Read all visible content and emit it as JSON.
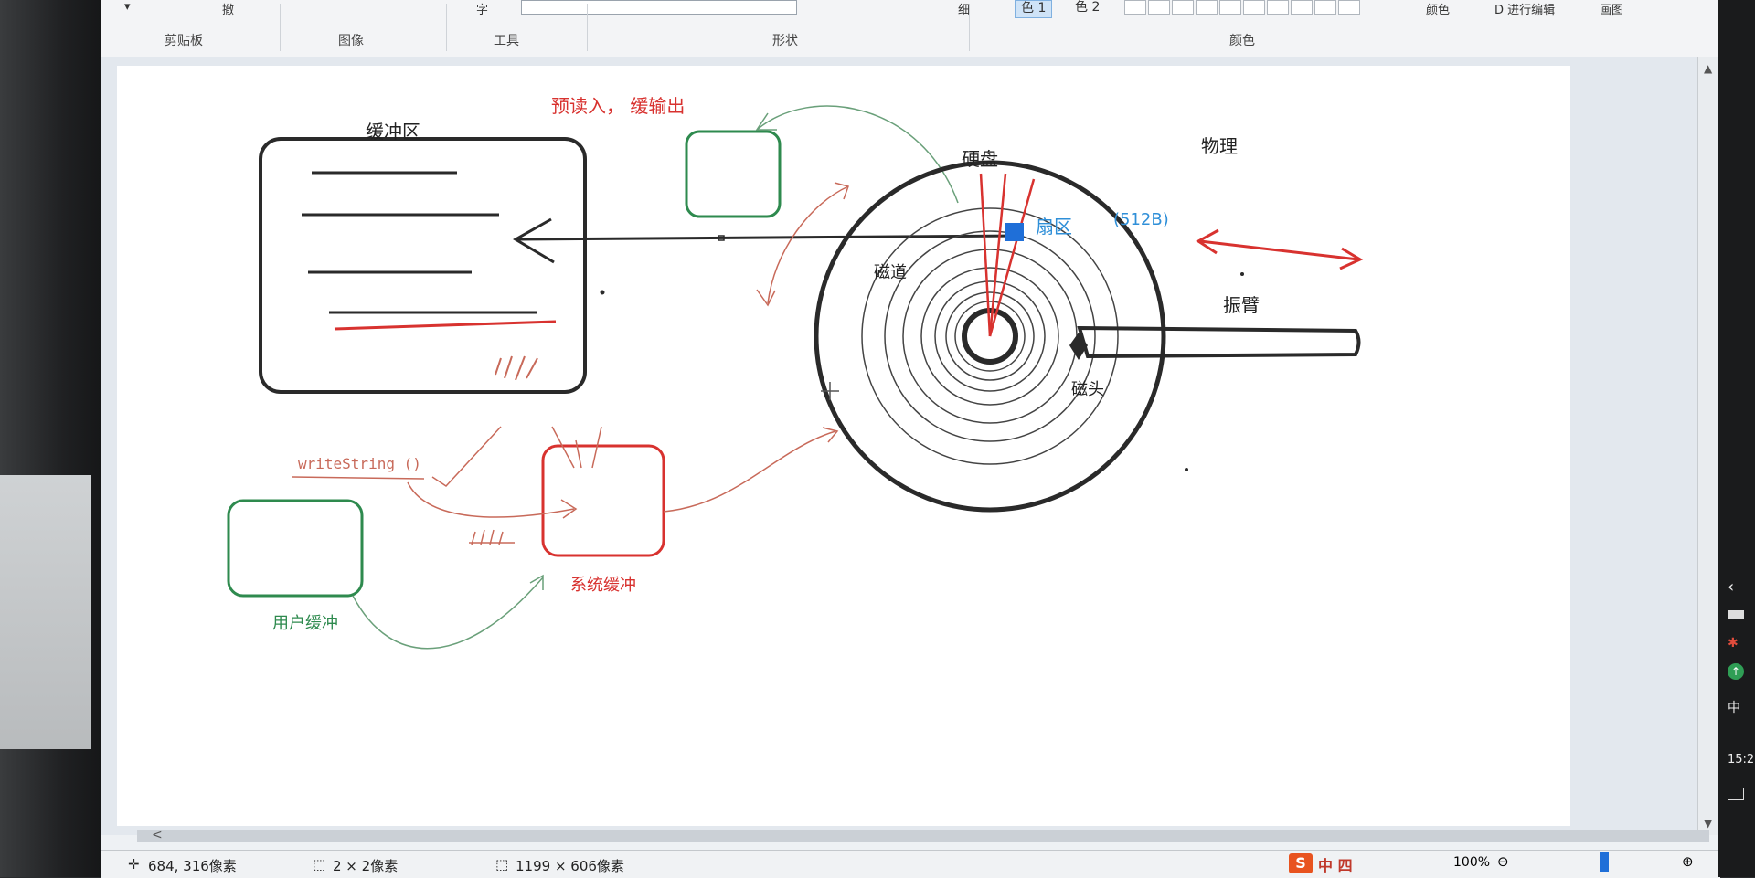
{
  "ribbon": {
    "top_items": [
      "撤",
      "字",
      "色 1",
      "色 2",
      "颜色",
      "D 进行编辑",
      "画图"
    ],
    "size_item": "细",
    "groups": [
      "剪贴板",
      "图像",
      "工具",
      "形状",
      "颜色"
    ]
  },
  "canvas": {
    "title_red": "预读入，  缓输出",
    "buffer_label": "缓冲区",
    "disk_label": "硬盘",
    "physical_label": "物理",
    "sector_label": "扇区",
    "sector_size": "(512B)",
    "track_label": "磁道",
    "arm_label": "振臂",
    "head_label": "磁头",
    "write_call": "writeString ()",
    "user_buffer": "用户缓冲",
    "system_buffer": "系统缓冲"
  },
  "status": {
    "cursor_pos": "684, 316像素",
    "selection_size": "2 × 2像素",
    "image_size": "1199 × 606像素",
    "zoom": "100%",
    "ime_brand": "S",
    "ime_mode": "中 四"
  },
  "taskbar": {
    "ime_char": "中",
    "time": "15:2"
  },
  "colors": {
    "red": "#d8322f",
    "green": "#2e8a4e",
    "blue": "#2f8fd8",
    "sketch_red": "#c86a5a",
    "sketch_green": "#6aa07a"
  }
}
